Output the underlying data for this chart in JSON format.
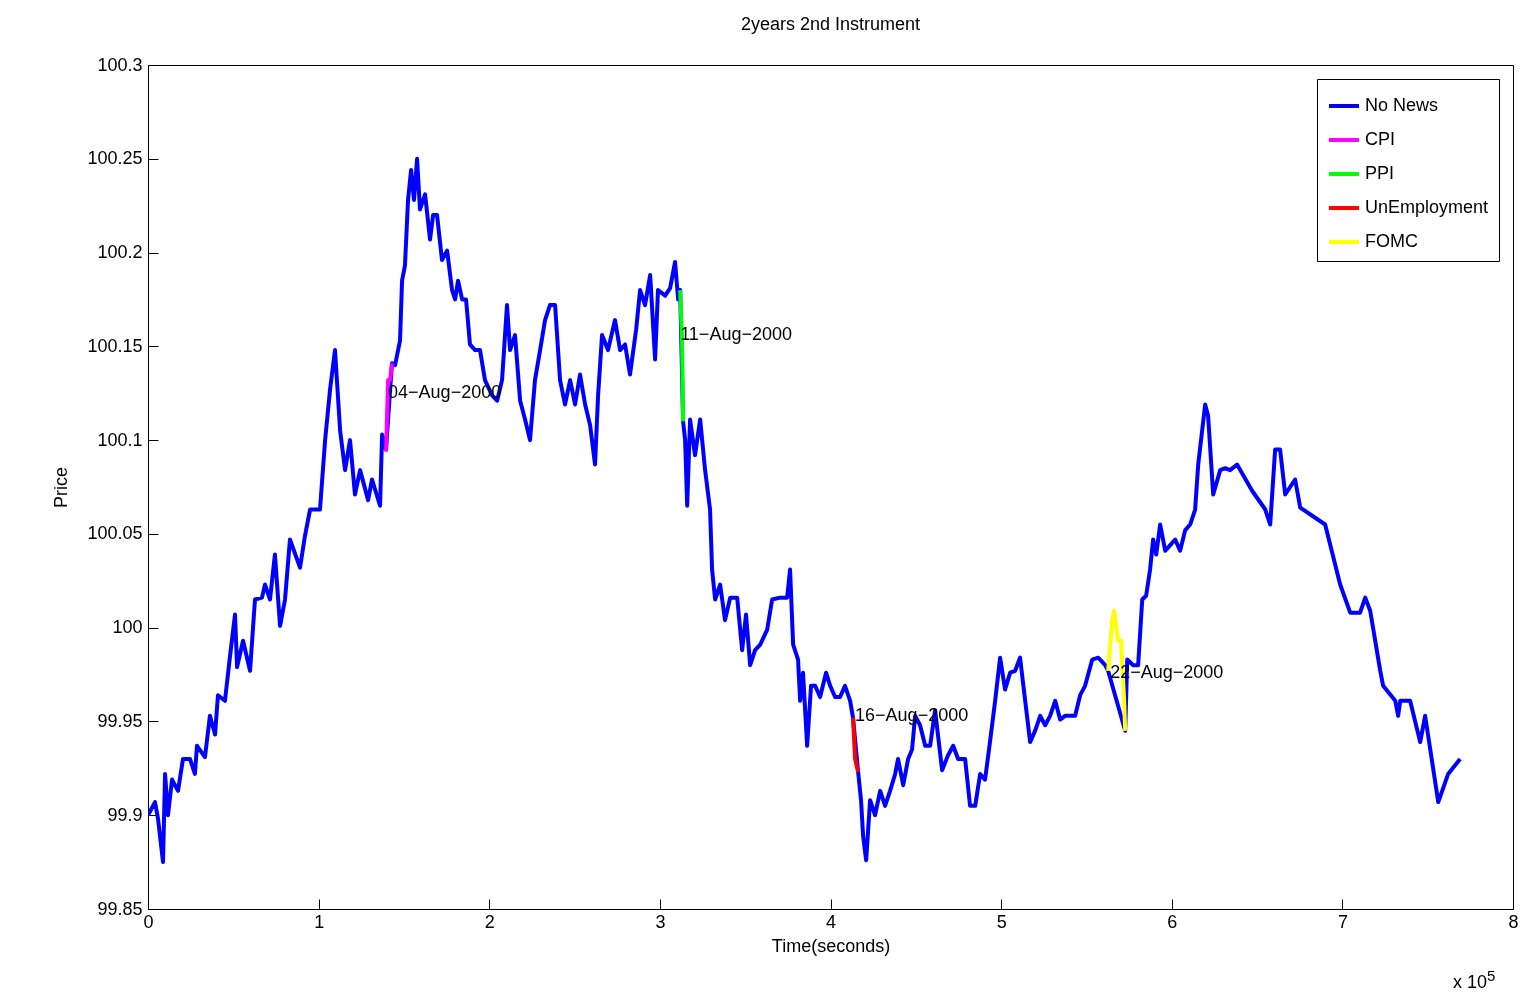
{
  "chart_data": {
    "type": "line",
    "title": "2years 2nd Instrument",
    "xlabel": "Time(seconds)",
    "ylabel": "Price",
    "xlim": [
      0,
      8
    ],
    "xticks": [
      0,
      1,
      2,
      3,
      4,
      5,
      6,
      7,
      8
    ],
    "ylim": [
      99.85,
      100.3
    ],
    "yticks": [
      99.85,
      99.9,
      99.95,
      100,
      100.05,
      100.1,
      100.15,
      100.2,
      100.25,
      100.3
    ],
    "grid": false,
    "legend": "top right",
    "marker": "none",
    "line_style": "solid",
    "annotations": [
      "x 10$^{5}$",
      {
        "text": "04−Aug−2000",
        "x": 1.407,
        "y": 100.125
      },
      {
        "text": "11−Aug−2000",
        "x": 3.119,
        "y": 100.156
      },
      {
        "text": "16−Aug−2000",
        "x": 4.144,
        "y": 99.953
      },
      {
        "text": "22−Aug−2000",
        "x": 5.639,
        "y": 99.976
      }
    ],
    "series": [
      {
        "name": "No News",
        "color": "#0000ff",
        "x": [
          0,
          0.041,
          0.059,
          0.088,
          0.1,
          0.117,
          0.141,
          0.176,
          0.205,
          0.246,
          0.275,
          0.287,
          0.334,
          0.363,
          0.393,
          0.41,
          0.451,
          0.481,
          0.51,
          0.522,
          0.557,
          0.598,
          0.627,
          0.668,
          0.686,
          0.715,
          0.744,
          0.774,
          0.803,
          0.832,
          0.891,
          0.92,
          0.95,
          1.008,
          1.038,
          1.067,
          1.096,
          1.126,
          1.155,
          1.184,
          1.213,
          1.243,
          1.29,
          1.313,
          1.36,
          1.372,
          1.395,
          1.43,
          1.448,
          1.477,
          1.489,
          1.506,
          1.524,
          1.542,
          1.559,
          1.577,
          1.594,
          1.624,
          1.653,
          1.671,
          1.694,
          1.723,
          1.753,
          1.782,
          1.8,
          1.817,
          1.841,
          1.864,
          1.887,
          1.917,
          1.946,
          1.975,
          2.016,
          2.046,
          2.075,
          2.104,
          2.122,
          2.151,
          2.181,
          2.21,
          2.239,
          2.268,
          2.298,
          2.327,
          2.356,
          2.386,
          2.415,
          2.444,
          2.474,
          2.503,
          2.532,
          2.562,
          2.591,
          2.62,
          2.638,
          2.661,
          2.696,
          2.737,
          2.767,
          2.796,
          2.825,
          2.861,
          2.884,
          2.913,
          2.943,
          2.972,
          2.989,
          3.031,
          3.06,
          3.089,
          3.107,
          3.119,
          3.136,
          3.148,
          3.16,
          3.177,
          3.206,
          3.236,
          3.265,
          3.294,
          3.306,
          3.324,
          3.353,
          3.382,
          3.412,
          3.453,
          3.482,
          3.505,
          3.529,
          3.558,
          3.588,
          3.629,
          3.658,
          3.705,
          3.746,
          3.763,
          3.781,
          3.81,
          3.822,
          3.839,
          3.863,
          3.886,
          3.91,
          3.939,
          3.974,
          3.998,
          4.027,
          4.056,
          4.085,
          4.115,
          4.132,
          4.162,
          4.179,
          4.191,
          4.209,
          4.232,
          4.261,
          4.291,
          4.32,
          4.349,
          4.379,
          4.396,
          4.426,
          4.455,
          4.478,
          4.496,
          4.525,
          4.555,
          4.584,
          4.613,
          4.654,
          4.689,
          4.719,
          4.748,
          4.789,
          4.818,
          4.848,
          4.877,
          4.906,
          4.936,
          4.965,
          4.994,
          5.023,
          5.053,
          5.082,
          5.111,
          5.141,
          5.17,
          5.199,
          5.229,
          5.258,
          5.287,
          5.317,
          5.346,
          5.375,
          5.434,
          5.463,
          5.492,
          5.534,
          5.569,
          5.61,
          5.627,
          5.727,
          5.739,
          5.774,
          5.803,
          5.827,
          5.85,
          5.873,
          5.891,
          5.909,
          5.932,
          5.962,
          5.991,
          6.02,
          6.049,
          6.079,
          6.108,
          6.137,
          6.155,
          6.196,
          6.213,
          6.243,
          6.284,
          6.313,
          6.342,
          6.383,
          6.471,
          6.548,
          6.577,
          6.606,
          6.635,
          6.665,
          6.723,
          6.753,
          6.899,
          6.987,
          7.046,
          7.104,
          7.134,
          7.163,
          7.222,
          7.239,
          7.31,
          7.327,
          7.339,
          7.397,
          7.456,
          7.485,
          7.562,
          7.62,
          7.69
        ],
        "values": [
          99.9,
          99.907,
          99.898,
          99.875,
          99.922,
          99.9,
          99.919,
          99.913,
          99.93,
          99.93,
          99.922,
          99.937,
          99.931,
          99.953,
          99.943,
          99.964,
          99.961,
          99.985,
          100.007,
          99.979,
          99.993,
          99.977,
          100.015,
          100.016,
          100.023,
          100.015,
          100.039,
          100.001,
          100.015,
          100.047,
          100.032,
          100.049,
          100.063,
          100.063,
          100.1,
          100.127,
          100.148,
          100.105,
          100.084,
          100.1,
          100.071,
          100.084,
          100.068,
          100.079,
          100.065,
          100.103,
          100.095,
          100.141,
          100.14,
          100.153,
          100.185,
          100.193,
          100.228,
          100.244,
          100.228,
          100.25,
          100.223,
          100.231,
          100.207,
          100.22,
          100.22,
          100.196,
          100.201,
          100.18,
          100.175,
          100.185,
          100.175,
          100.175,
          100.151,
          100.148,
          100.148,
          100.132,
          100.124,
          100.121,
          100.132,
          100.172,
          100.148,
          100.156,
          100.121,
          100.111,
          100.1,
          100.132,
          100.148,
          100.164,
          100.172,
          100.172,
          100.132,
          100.119,
          100.132,
          100.119,
          100.135,
          100.119,
          100.108,
          100.087,
          100.124,
          100.156,
          100.148,
          100.164,
          100.148,
          100.151,
          100.135,
          100.159,
          100.18,
          100.172,
          100.188,
          100.143,
          100.18,
          100.177,
          100.181,
          100.195,
          100.175,
          100.18,
          100.11,
          100.1,
          100.065,
          100.111,
          100.092,
          100.111,
          100.084,
          100.063,
          100.031,
          100.015,
          100.023,
          100.004,
          100.016,
          100.016,
          99.988,
          100.007,
          99.98,
          99.988,
          99.991,
          99.999,
          100.015,
          100.016,
          100.016,
          100.031,
          99.991,
          99.983,
          99.961,
          99.976,
          99.937,
          99.969,
          99.969,
          99.963,
          99.976,
          99.969,
          99.963,
          99.963,
          99.969,
          99.961,
          99.952,
          99.923,
          99.908,
          99.889,
          99.876,
          99.908,
          99.9,
          99.913,
          99.905,
          99.913,
          99.922,
          99.93,
          99.916,
          99.93,
          99.935,
          99.953,
          99.948,
          99.937,
          99.937,
          99.956,
          99.924,
          99.932,
          99.937,
          99.93,
          99.93,
          99.905,
          99.905,
          99.922,
          99.919,
          99.94,
          99.961,
          99.984,
          99.967,
          99.976,
          99.977,
          99.984,
          99.961,
          99.939,
          99.945,
          99.953,
          99.948,
          99.953,
          99.961,
          99.951,
          99.953,
          99.953,
          99.964,
          99.969,
          99.983,
          99.984,
          99.98,
          99.977,
          99.945,
          99.983,
          99.98,
          99.98,
          100.015,
          100.017,
          100.031,
          100.047,
          100.039,
          100.055,
          100.041,
          100.044,
          100.047,
          100.041,
          100.052,
          100.055,
          100.063,
          100.087,
          100.119,
          100.113,
          100.071,
          100.084,
          100.085,
          100.084,
          100.087,
          100.073,
          100.063,
          100.055,
          100.095,
          100.095,
          100.071,
          100.079,
          100.064,
          100.055,
          100.023,
          100.008,
          100.008,
          100.016,
          100.009,
          99.977,
          99.969,
          99.961,
          99.953,
          99.961,
          99.961,
          99.939,
          99.953,
          99.907,
          99.922,
          99.93
        ]
      },
      {
        "name": "CPI",
        "color": "#ff00ff",
        "x": [
          1.395,
          1.407,
          1.419,
          1.43
        ],
        "values": [
          100.094,
          100.132,
          100.132,
          100.141
        ]
      },
      {
        "name": "PPI",
        "color": "#00ff00",
        "x": [
          3.119,
          3.13,
          3.136
        ],
        "values": [
          100.18,
          100.153,
          100.11
        ]
      },
      {
        "name": "UnEmployment",
        "color": "#ff0000",
        "x": [
          4.132,
          4.144,
          4.162
        ],
        "values": [
          99.952,
          99.93,
          99.923
        ]
      },
      {
        "name": "FOMC",
        "color": "#ffff00",
        "x": [
          5.627,
          5.651,
          5.662,
          5.686,
          5.703,
          5.721,
          5.727
        ],
        "values": [
          99.977,
          100.004,
          100.009,
          99.993,
          99.993,
          99.961,
          99.945
        ]
      }
    ]
  }
}
